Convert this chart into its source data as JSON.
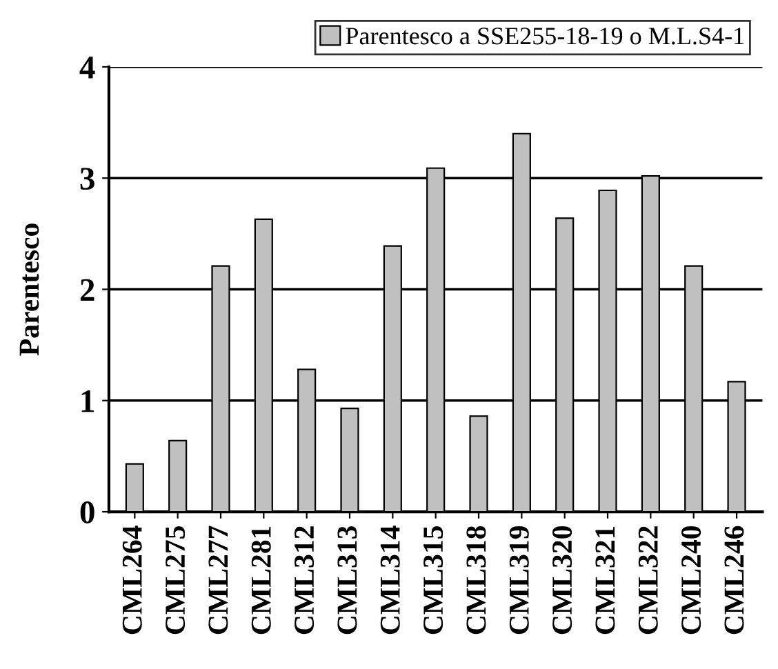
{
  "chart_data": {
    "type": "bar",
    "ylabel": "Parentesco",
    "categories": [
      "CML264",
      "CML275",
      "CML277",
      "CML281",
      "CML312",
      "CML313",
      "CML314",
      "CML315",
      "CML318",
      "CML319",
      "CML320",
      "CML321",
      "CML322",
      "CML240",
      "CML246"
    ],
    "series": [
      {
        "name": "Parentesco a SSE255-18-19 o M.L.S4-1",
        "color": "#c0c0c0",
        "values": [
          0.43,
          0.64,
          2.21,
          2.63,
          1.28,
          0.93,
          2.39,
          3.09,
          0.86,
          3.4,
          2.64,
          2.89,
          3.02,
          2.21,
          1.17
        ]
      }
    ],
    "ylim": [
      0,
      4
    ],
    "yticks": [
      0,
      1,
      2,
      3,
      4
    ],
    "grid": "y",
    "legend": "top right"
  }
}
